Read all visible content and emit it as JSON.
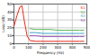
{
  "chart_data": {
    "type": "line",
    "x_label": "Frequency (Hz)",
    "y_label": "Loss (dB)",
    "x": [
      0,
      20,
      40,
      55,
      70,
      90,
      110,
      150,
      200,
      250,
      300,
      350,
      400,
      450,
      480
    ],
    "series": [
      {
        "name": "S1",
        "color": "#e8291c",
        "values": [
          22,
          35,
          46,
          48,
          30,
          10,
          4,
          3,
          3,
          3,
          3,
          3,
          3,
          3,
          3
        ]
      },
      {
        "name": "S2",
        "color": "#5cb85c",
        "values": [
          null,
          null,
          null,
          null,
          null,
          null,
          19,
          18,
          18,
          18,
          17,
          17,
          17,
          17,
          17
        ]
      },
      {
        "name": "S3",
        "color": "#3fa7c9",
        "values": [
          null,
          null,
          null,
          null,
          null,
          null,
          14,
          14,
          13,
          13,
          13,
          13,
          13,
          13,
          13
        ]
      },
      {
        "name": "S4",
        "color": "#9b59b6",
        "values": [
          null,
          null,
          null,
          null,
          null,
          null,
          10,
          10,
          9,
          9,
          9,
          9,
          9,
          9,
          9
        ]
      }
    ],
    "xlim": [
      0,
      500
    ],
    "xticks": [
      0,
      100,
      200,
      300,
      400,
      500
    ],
    "ylim": [
      0,
      50
    ],
    "yticks": [
      0,
      10,
      20,
      30,
      40,
      50
    ],
    "grid": true,
    "legend": "top-right"
  }
}
